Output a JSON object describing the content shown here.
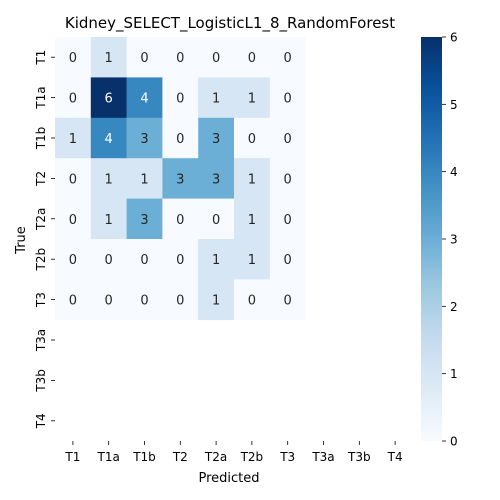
{
  "chart_data": {
    "type": "heatmap",
    "title": "Kidney_SELECT_LogisticL1_8_RandomForest",
    "xlabel": "Predicted",
    "ylabel": "True",
    "x_categories": [
      "T1",
      "T1a",
      "T1b",
      "T2",
      "T2a",
      "T2b",
      "T3",
      "T3a",
      "T3b",
      "T4"
    ],
    "y_categories": [
      "T1",
      "T1a",
      "T1b",
      "T2",
      "T2a",
      "T2b",
      "T3",
      "T3a",
      "T3b",
      "T4"
    ],
    "values": [
      [
        0,
        1,
        0,
        0,
        0,
        0,
        0,
        null,
        null,
        null
      ],
      [
        0,
        6,
        4,
        0,
        1,
        1,
        0,
        null,
        null,
        null
      ],
      [
        1,
        4,
        3,
        0,
        3,
        0,
        0,
        null,
        null,
        null
      ],
      [
        0,
        1,
        1,
        3,
        3,
        1,
        0,
        null,
        null,
        null
      ],
      [
        0,
        1,
        3,
        0,
        0,
        1,
        0,
        null,
        null,
        null
      ],
      [
        0,
        0,
        0,
        0,
        1,
        1,
        0,
        null,
        null,
        null
      ],
      [
        0,
        0,
        0,
        0,
        1,
        0,
        0,
        null,
        null,
        null
      ],
      [
        null,
        null,
        null,
        null,
        null,
        null,
        null,
        null,
        null,
        null
      ],
      [
        null,
        null,
        null,
        null,
        null,
        null,
        null,
        null,
        null,
        null
      ],
      [
        null,
        null,
        null,
        null,
        null,
        null,
        null,
        null,
        null,
        null
      ]
    ],
    "colormap": "Blues",
    "colorbar": {
      "range": [
        0,
        6
      ],
      "ticks": [
        "0",
        "1",
        "2",
        "3",
        "4",
        "5",
        "6"
      ]
    }
  }
}
